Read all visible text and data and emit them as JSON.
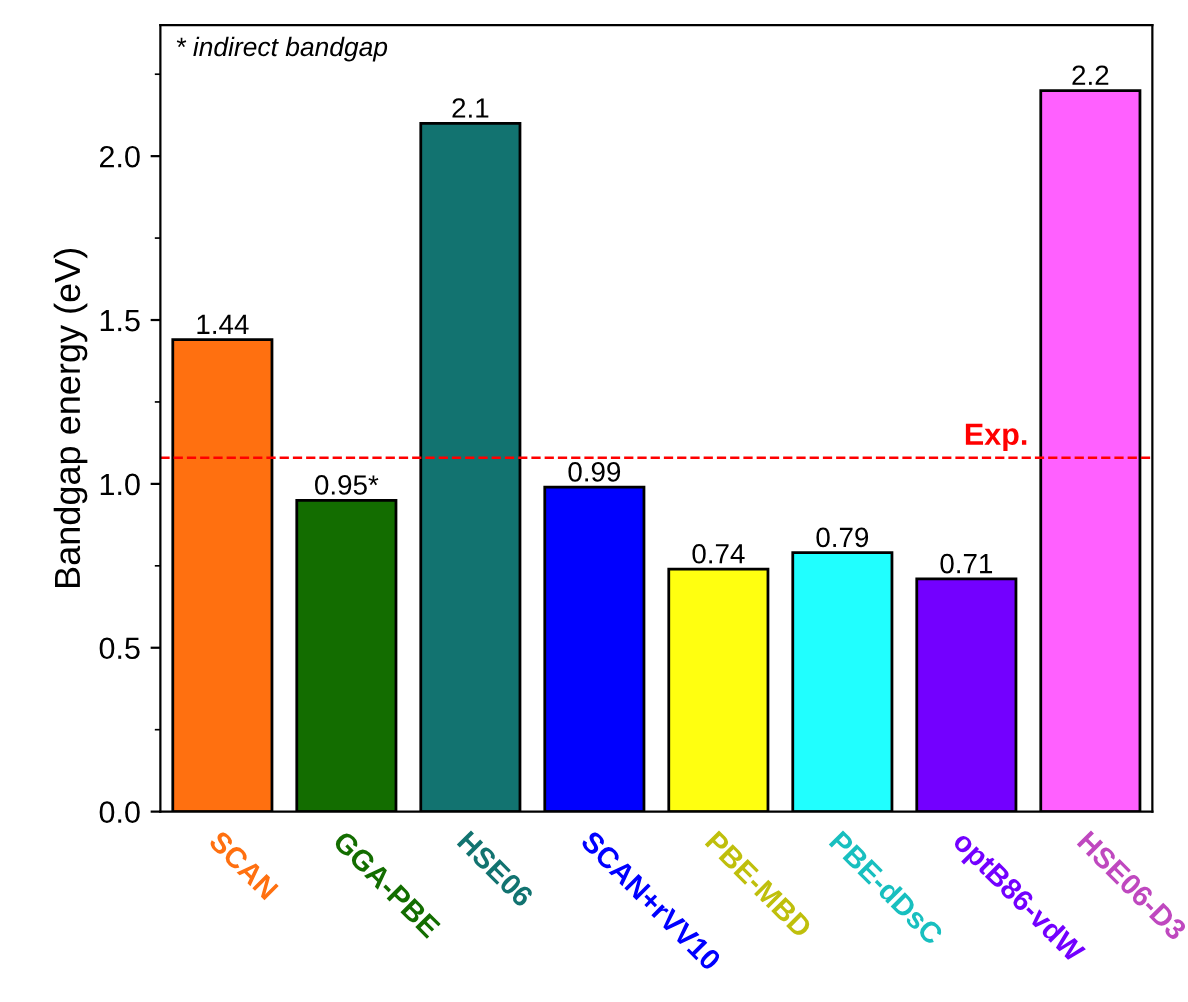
{
  "chart_data": {
    "type": "bar",
    "ylabel": "Bandgap energy (eV)",
    "categories": [
      "SCAN",
      "GGA-PBE",
      "HSE06",
      "SCAN+rVV10",
      "PBE-MBD",
      "PBE-dDsC",
      "optB86-vdW",
      "HSE06-D3"
    ],
    "values": [
      1.44,
      0.95,
      2.1,
      0.99,
      0.74,
      0.79,
      0.71,
      2.2
    ],
    "value_labels": [
      "1.44",
      "0.95*",
      "2.1",
      "0.99",
      "0.74",
      "0.79",
      "0.71",
      "2.2"
    ],
    "colors": [
      "#ff7010",
      "#136d00",
      "#127370",
      "#0000ff",
      "#ffff10",
      "#20ffff",
      "#7300ff",
      "#ff60ff"
    ],
    "ylim": [
      0,
      2.4
    ],
    "yticks": [
      {
        "value": 0,
        "label": "0.0"
      },
      0.5,
      {
        "value": 1,
        "label": "1.0"
      },
      1.5,
      {
        "value": 2,
        "label": "2.0"
      }
    ],
    "ref_lines": [
      {
        "axis": "y",
        "value": 1.08,
        "label": "Exp.",
        "color": "#ff0000",
        "line_style": "dashed"
      }
    ],
    "annotations": [
      "* indirect bandgap"
    ],
    "grid": false,
    "legend": false
  }
}
